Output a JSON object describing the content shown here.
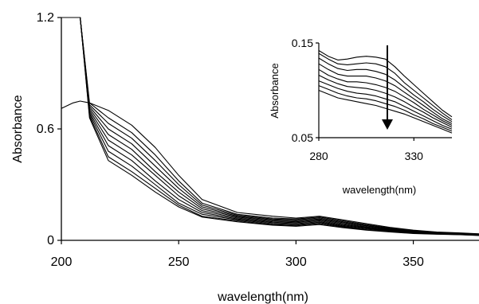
{
  "chart_data": [
    {
      "type": "line",
      "title": "",
      "xlabel": "wavelength(nm)",
      "ylabel": "Absorbance",
      "xlim": [
        200,
        378
      ],
      "ylim": [
        0,
        1.2
      ],
      "xticks": [
        "200",
        "250",
        "300",
        "350"
      ],
      "yticks": [
        "0",
        "0.6",
        "1.2"
      ],
      "x": [
        200,
        205,
        208,
        212,
        220,
        230,
        240,
        250,
        260,
        275,
        290,
        300,
        310,
        320,
        330,
        340,
        350,
        360,
        370,
        378
      ],
      "series": [
        {
          "values": [
            0.71,
            0.74,
            0.75,
            0.74,
            0.7,
            0.62,
            0.5,
            0.35,
            0.22,
            0.15,
            0.13,
            0.12,
            0.13,
            0.11,
            0.09,
            0.07,
            0.055,
            0.045,
            0.04,
            0.035
          ]
        },
        {
          "values": [
            1.2,
            1.2,
            1.2,
            0.74,
            0.66,
            0.58,
            0.46,
            0.32,
            0.2,
            0.14,
            0.12,
            0.115,
            0.125,
            0.105,
            0.085,
            0.066,
            0.052,
            0.043,
            0.038,
            0.034
          ]
        },
        {
          "values": [
            1.2,
            1.2,
            1.2,
            0.73,
            0.63,
            0.55,
            0.43,
            0.3,
            0.19,
            0.135,
            0.115,
            0.11,
            0.12,
            0.1,
            0.08,
            0.063,
            0.05,
            0.041,
            0.037,
            0.033
          ]
        },
        {
          "values": [
            1.2,
            1.2,
            1.2,
            0.72,
            0.6,
            0.52,
            0.4,
            0.28,
            0.18,
            0.13,
            0.11,
            0.105,
            0.115,
            0.095,
            0.077,
            0.06,
            0.048,
            0.04,
            0.036,
            0.032
          ]
        },
        {
          "values": [
            1.2,
            1.2,
            1.2,
            0.71,
            0.57,
            0.49,
            0.37,
            0.26,
            0.17,
            0.125,
            0.105,
            0.1,
            0.11,
            0.09,
            0.073,
            0.057,
            0.046,
            0.039,
            0.035,
            0.031
          ]
        },
        {
          "values": [
            1.2,
            1.2,
            1.2,
            0.7,
            0.54,
            0.46,
            0.35,
            0.24,
            0.16,
            0.12,
            0.1,
            0.095,
            0.105,
            0.085,
            0.07,
            0.055,
            0.044,
            0.038,
            0.034,
            0.03
          ]
        },
        {
          "values": [
            1.2,
            1.2,
            1.2,
            0.69,
            0.51,
            0.43,
            0.32,
            0.22,
            0.15,
            0.115,
            0.095,
            0.09,
            0.1,
            0.08,
            0.066,
            0.052,
            0.042,
            0.036,
            0.033,
            0.029
          ]
        },
        {
          "values": [
            1.2,
            1.2,
            1.2,
            0.68,
            0.48,
            0.4,
            0.3,
            0.2,
            0.14,
            0.11,
            0.09,
            0.085,
            0.095,
            0.076,
            0.062,
            0.05,
            0.04,
            0.035,
            0.032,
            0.028
          ]
        },
        {
          "values": [
            1.2,
            1.2,
            1.2,
            0.67,
            0.45,
            0.37,
            0.28,
            0.19,
            0.13,
            0.105,
            0.085,
            0.08,
            0.09,
            0.072,
            0.058,
            0.047,
            0.038,
            0.034,
            0.031,
            0.027
          ]
        },
        {
          "values": [
            1.2,
            1.2,
            1.2,
            0.66,
            0.43,
            0.35,
            0.26,
            0.18,
            0.125,
            0.1,
            0.082,
            0.076,
            0.085,
            0.068,
            0.055,
            0.045,
            0.037,
            0.033,
            0.03,
            0.026
          ]
        }
      ]
    },
    {
      "type": "line",
      "title": "",
      "xlabel": "wavelength(nm)",
      "ylabel": "Absorbance",
      "xlim": [
        280,
        350
      ],
      "ylim": [
        0.05,
        0.15
      ],
      "xticks": [
        "280",
        "330"
      ],
      "yticks": [
        "0.05",
        "0.15"
      ],
      "x": [
        280,
        285,
        290,
        295,
        300,
        305,
        310,
        315,
        320,
        325,
        330,
        335,
        340,
        345,
        350
      ],
      "annotation": "downward arrow indicating decreasing absorbance",
      "series": [
        {
          "values": [
            0.142,
            0.136,
            0.132,
            0.133,
            0.135,
            0.136,
            0.135,
            0.133,
            0.125,
            0.115,
            0.106,
            0.097,
            0.088,
            0.079,
            0.072
          ]
        },
        {
          "values": [
            0.139,
            0.133,
            0.128,
            0.127,
            0.128,
            0.129,
            0.128,
            0.125,
            0.118,
            0.108,
            0.1,
            0.092,
            0.084,
            0.076,
            0.069
          ]
        },
        {
          "values": [
            0.134,
            0.128,
            0.123,
            0.121,
            0.122,
            0.122,
            0.12,
            0.117,
            0.111,
            0.103,
            0.095,
            0.088,
            0.08,
            0.073,
            0.067
          ]
        },
        {
          "values": [
            0.128,
            0.122,
            0.117,
            0.115,
            0.115,
            0.115,
            0.113,
            0.11,
            0.105,
            0.098,
            0.091,
            0.084,
            0.077,
            0.07,
            0.065
          ]
        },
        {
          "values": [
            0.122,
            0.116,
            0.112,
            0.109,
            0.109,
            0.108,
            0.106,
            0.103,
            0.099,
            0.093,
            0.087,
            0.08,
            0.074,
            0.068,
            0.063
          ]
        },
        {
          "values": [
            0.116,
            0.111,
            0.107,
            0.104,
            0.103,
            0.102,
            0.1,
            0.097,
            0.093,
            0.088,
            0.082,
            0.077,
            0.071,
            0.066,
            0.061
          ]
        },
        {
          "values": [
            0.11,
            0.106,
            0.102,
            0.099,
            0.097,
            0.096,
            0.094,
            0.091,
            0.088,
            0.083,
            0.078,
            0.073,
            0.068,
            0.063,
            0.059
          ]
        },
        {
          "values": [
            0.105,
            0.101,
            0.097,
            0.094,
            0.092,
            0.091,
            0.089,
            0.086,
            0.083,
            0.079,
            0.074,
            0.07,
            0.065,
            0.061,
            0.057
          ]
        },
        {
          "values": [
            0.1,
            0.096,
            0.092,
            0.09,
            0.088,
            0.086,
            0.084,
            0.081,
            0.078,
            0.075,
            0.071,
            0.067,
            0.063,
            0.059,
            0.055
          ]
        }
      ]
    }
  ]
}
